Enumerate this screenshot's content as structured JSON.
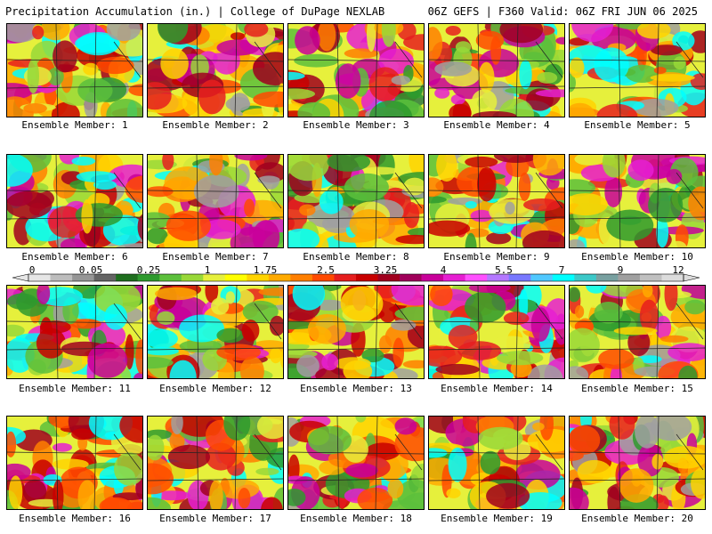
{
  "header": {
    "title_left": "Precipitation Accumulation (in.) | College of DuPage NEXLAB",
    "title_right": "06Z GEFS | F360 Valid: 06Z FRI JUN 06 2025"
  },
  "panels": [
    {
      "label": "Ensemble Member: 1"
    },
    {
      "label": "Ensemble Member: 2"
    },
    {
      "label": "Ensemble Member: 3"
    },
    {
      "label": "Ensemble Member: 4"
    },
    {
      "label": "Ensemble Member: 5"
    },
    {
      "label": "Ensemble Member: 6"
    },
    {
      "label": "Ensemble Member: 7"
    },
    {
      "label": "Ensemble Member: 8"
    },
    {
      "label": "Ensemble Member: 9"
    },
    {
      "label": "Ensemble Member: 10"
    },
    {
      "label": "Ensemble Member: 11"
    },
    {
      "label": "Ensemble Member: 12"
    },
    {
      "label": "Ensemble Member: 13"
    },
    {
      "label": "Ensemble Member: 14"
    },
    {
      "label": "Ensemble Member: 15"
    },
    {
      "label": "Ensemble Member: 16"
    },
    {
      "label": "Ensemble Member: 17"
    },
    {
      "label": "Ensemble Member: 18"
    },
    {
      "label": "Ensemble Member: 19"
    },
    {
      "label": "Ensemble Member: 20"
    }
  ],
  "colorbar": {
    "labels": [
      "0",
      "0.05",
      "0.25",
      "1",
      "1.75",
      "2.5",
      "3.25",
      "4",
      "5.5",
      "7",
      "9",
      "12"
    ],
    "colors": [
      "#e6e6e6",
      "#bdbdbd",
      "#969696",
      "#646464",
      "#1e6e1e",
      "#2e9a2e",
      "#5cc03c",
      "#98d838",
      "#e6f03c",
      "#ffff00",
      "#ffd400",
      "#ffaa00",
      "#ff7f00",
      "#ff4a00",
      "#e61e1e",
      "#c80000",
      "#a0001e",
      "#a0005a",
      "#c8009a",
      "#e61ed2",
      "#ff50ff",
      "#b478ff",
      "#7878ff",
      "#50c8ff",
      "#00ffff",
      "#3cc8c8",
      "#78a0a0",
      "#a0a0a0",
      "#c0c0c0",
      "#dcdcdc"
    ]
  }
}
